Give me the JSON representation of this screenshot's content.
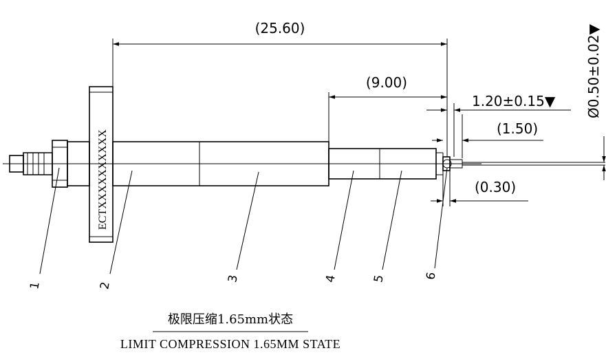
{
  "dimensions": {
    "overall": "(25.60)",
    "tip_section": "(9.00)",
    "tip_travel": "␳1.20±0.15▼",
    "plunger_length": "(1.50)",
    "gap": "(0.30)",
    "diameter": "␴Ø0.50±0.02▼"
  },
  "serial_marking": "ECTXXXXXXXXXX",
  "part_labels": [
    "1",
    "2",
    "3",
    "4",
    "5",
    "6"
  ],
  "caption": {
    "chinese": "极限压缩1.65mm状态",
    "english": "LIMIT COMPRESSION 1.65MM STATE"
  }
}
